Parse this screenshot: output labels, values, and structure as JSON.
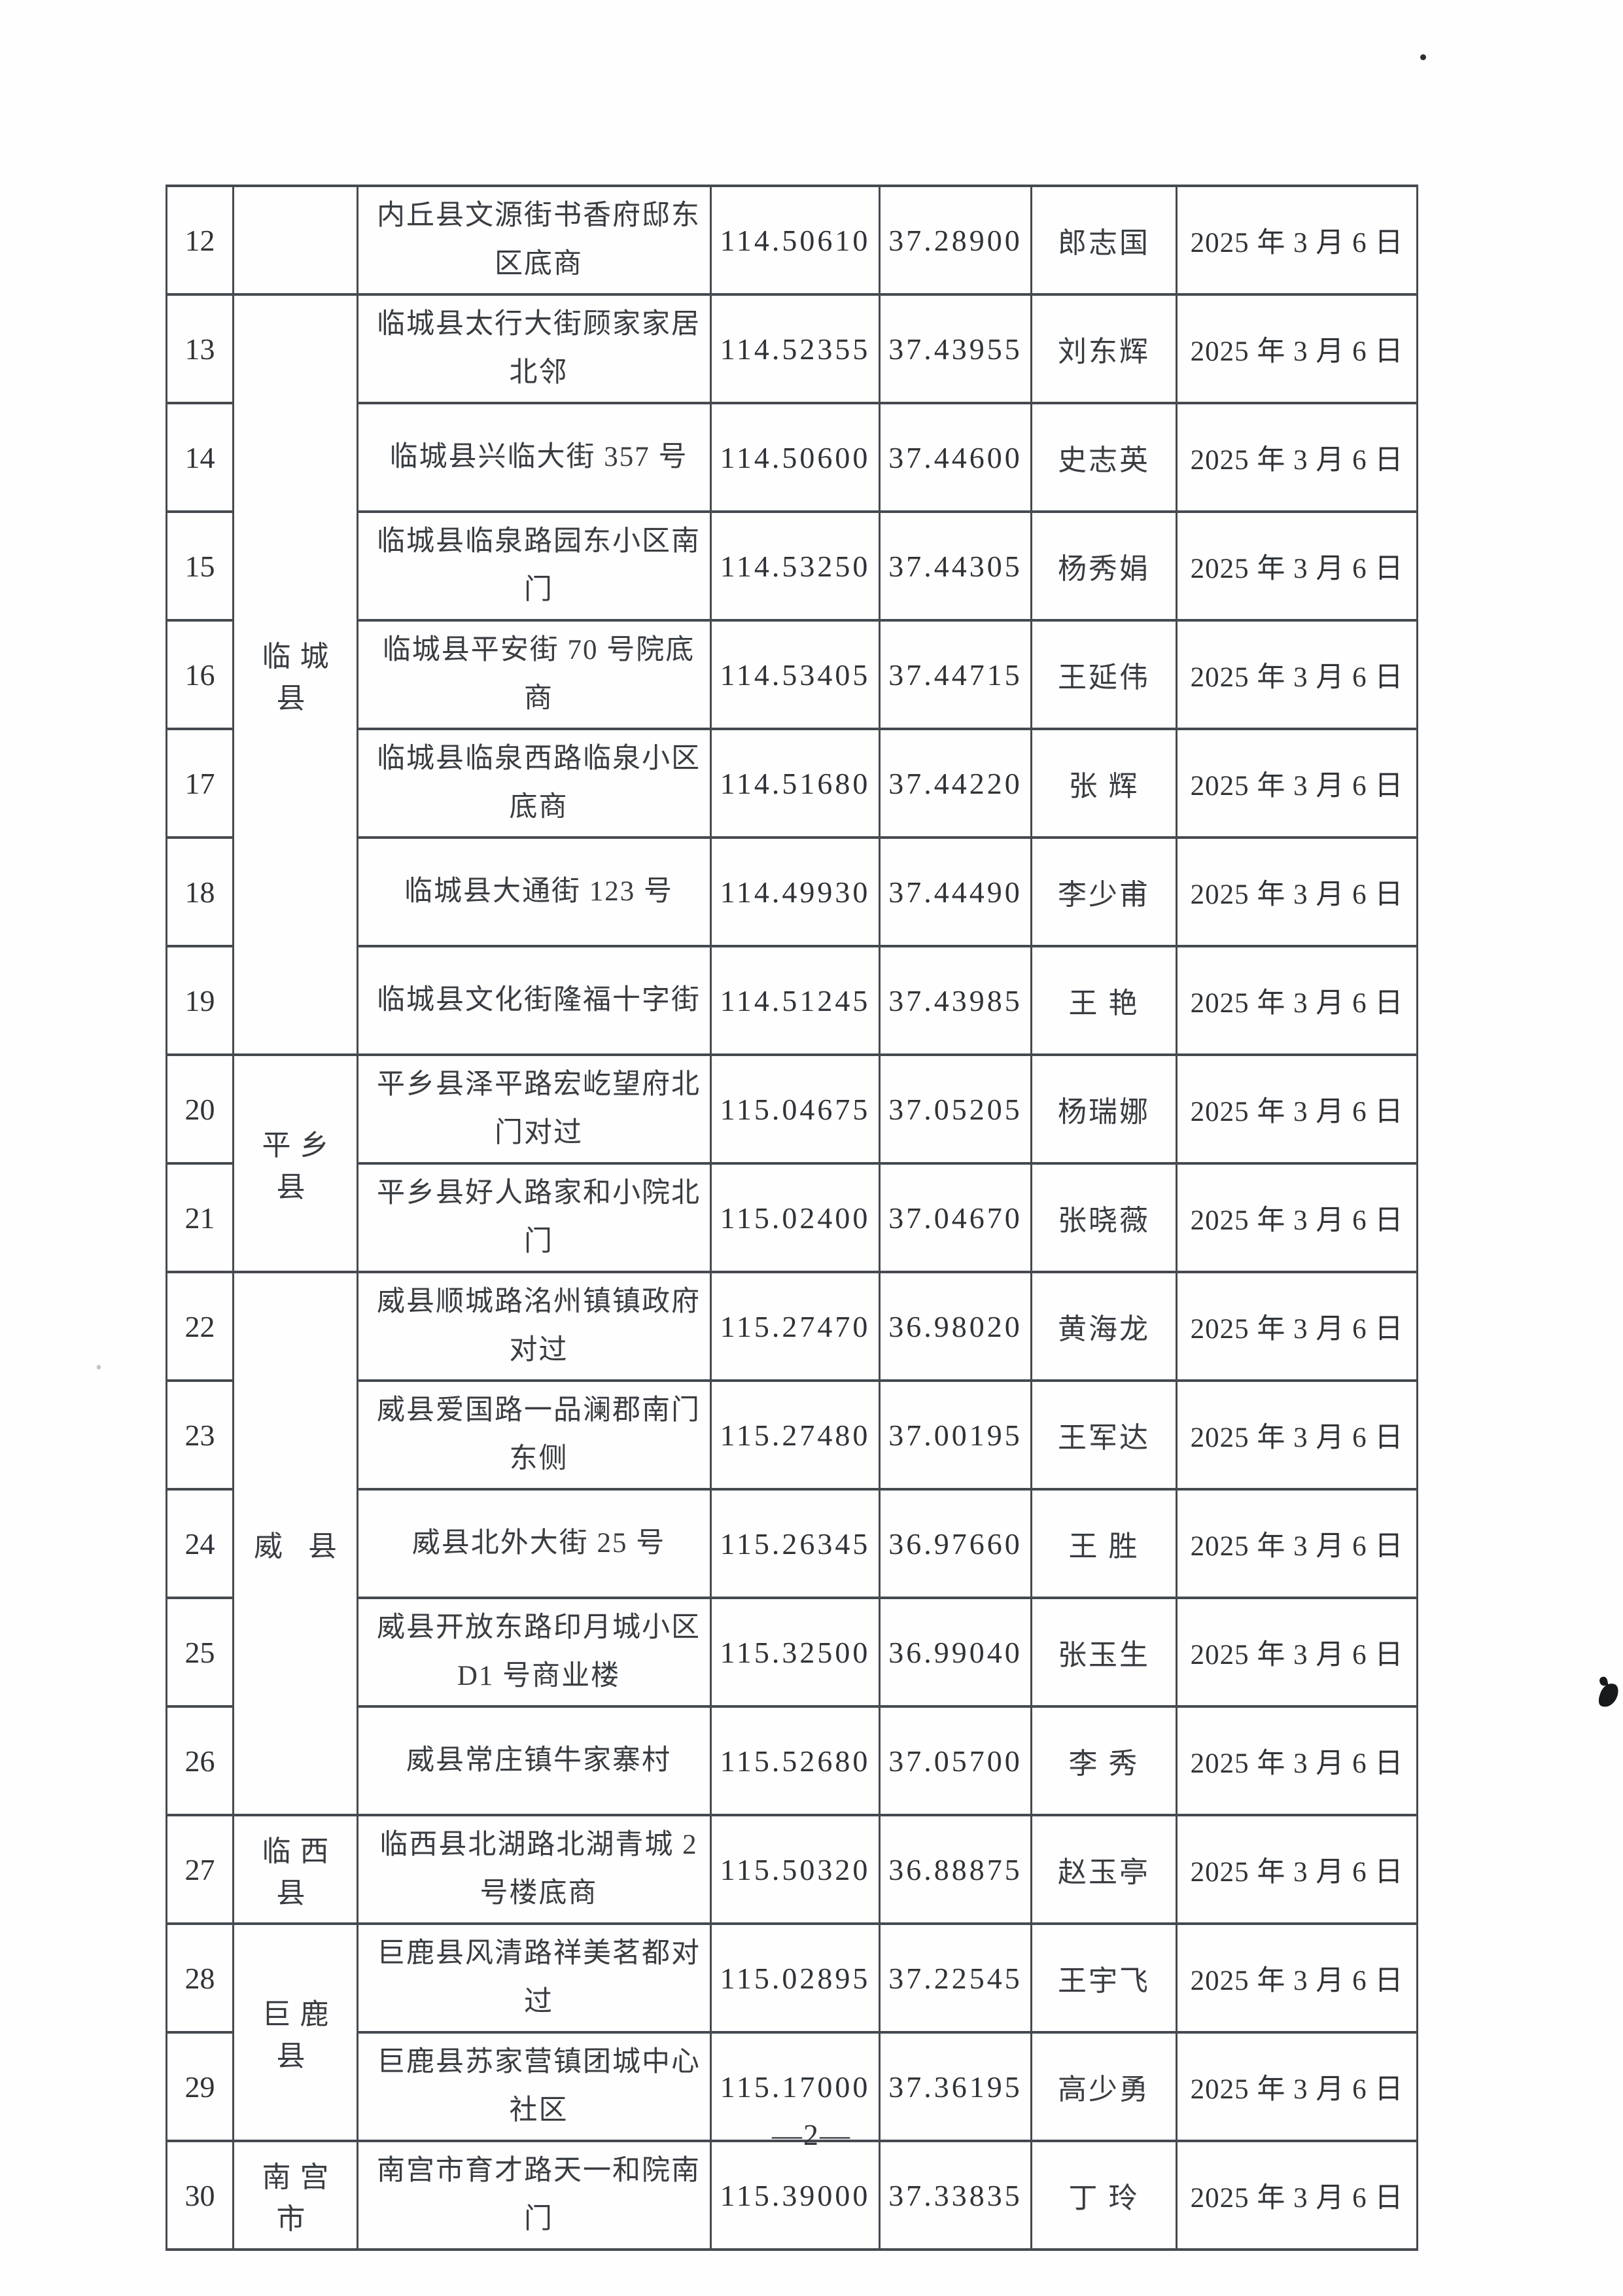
{
  "page": {
    "number_label": "—2—"
  },
  "table": {
    "rows": [
      {
        "seq": "12",
        "county": "",
        "countySpan": 1,
        "address": "内丘县文源街书香府邸东\n区底商",
        "longitude": "114.50610",
        "latitude": "37.28900",
        "name": "郎志国",
        "date": "2025 年 3 月 6 日"
      },
      {
        "seq": "13",
        "county": "临城县",
        "countySpan": 7,
        "address": "临城县太行大街顾家家居\n北邻",
        "longitude": "114.52355",
        "latitude": "37.43955",
        "name": "刘东辉",
        "date": "2025 年 3 月 6 日"
      },
      {
        "seq": "14",
        "county": "",
        "countySpan": 0,
        "address": "临城县兴临大街 357 号",
        "longitude": "114.50600",
        "latitude": "37.44600",
        "name": "史志英",
        "date": "2025 年 3 月 6 日"
      },
      {
        "seq": "15",
        "county": "",
        "countySpan": 0,
        "address": "临城县临泉路园东小区南\n门",
        "longitude": "114.53250",
        "latitude": "37.44305",
        "name": "杨秀娟",
        "date": "2025 年 3 月 6 日"
      },
      {
        "seq": "16",
        "county": "",
        "countySpan": 0,
        "address": "临城县平安街 70 号院底\n商",
        "longitude": "114.53405",
        "latitude": "37.44715",
        "name": "王延伟",
        "date": "2025 年 3 月 6 日"
      },
      {
        "seq": "17",
        "county": "",
        "countySpan": 0,
        "address": "临城县临泉西路临泉小区\n底商",
        "longitude": "114.51680",
        "latitude": "37.44220",
        "name": "张 辉",
        "date": "2025 年 3 月 6 日"
      },
      {
        "seq": "18",
        "county": "",
        "countySpan": 0,
        "address": "临城县大通街 123 号",
        "longitude": "114.49930",
        "latitude": "37.44490",
        "name": "李少甫",
        "date": "2025 年 3 月 6 日"
      },
      {
        "seq": "19",
        "county": "",
        "countySpan": 0,
        "address": "临城县文化街隆福十字街",
        "longitude": "114.51245",
        "latitude": "37.43985",
        "name": "王 艳",
        "date": "2025 年 3 月 6 日"
      },
      {
        "seq": "20",
        "county": "平乡县",
        "countySpan": 2,
        "address": "平乡县泽平路宏屹望府北\n门对过",
        "longitude": "115.04675",
        "latitude": "37.05205",
        "name": "杨瑞娜",
        "date": "2025 年 3 月 6 日"
      },
      {
        "seq": "21",
        "county": "",
        "countySpan": 0,
        "address": "平乡县好人路家和小院北\n门",
        "longitude": "115.02400",
        "latitude": "37.04670",
        "name": "张晓薇",
        "date": "2025 年 3 月 6 日"
      },
      {
        "seq": "22",
        "county": "威 县",
        "countySpan": 5,
        "address": "威县顺城路洺州镇镇政府\n对过",
        "longitude": "115.27470",
        "latitude": "36.98020",
        "name": "黄海龙",
        "date": "2025 年 3 月 6 日"
      },
      {
        "seq": "23",
        "county": "",
        "countySpan": 0,
        "address": "威县爱国路一品澜郡南门\n东侧",
        "longitude": "115.27480",
        "latitude": "37.00195",
        "name": "王军达",
        "date": "2025 年 3 月 6 日"
      },
      {
        "seq": "24",
        "county": "",
        "countySpan": 0,
        "address": "威县北外大街 25 号",
        "longitude": "115.26345",
        "latitude": "36.97660",
        "name": "王 胜",
        "date": "2025 年 3 月 6 日"
      },
      {
        "seq": "25",
        "county": "",
        "countySpan": 0,
        "address": "威县开放东路印月城小区\nD1 号商业楼",
        "longitude": "115.32500",
        "latitude": "36.99040",
        "name": "张玉生",
        "date": "2025 年 3 月 6 日"
      },
      {
        "seq": "26",
        "county": "",
        "countySpan": 0,
        "address": "威县常庄镇牛家寨村",
        "longitude": "115.52680",
        "latitude": "37.05700",
        "name": "李 秀",
        "date": "2025 年 3 月 6 日"
      },
      {
        "seq": "27",
        "county": "临西县",
        "countySpan": 1,
        "address": "临西县北湖路北湖青城 2\n号楼底商",
        "longitude": "115.50320",
        "latitude": "36.88875",
        "name": "赵玉亭",
        "date": "2025 年 3 月 6 日"
      },
      {
        "seq": "28",
        "county": "巨鹿县",
        "countySpan": 2,
        "address": "巨鹿县风清路祥美茗都对\n过",
        "longitude": "115.02895",
        "latitude": "37.22545",
        "name": "王宇飞",
        "date": "2025 年 3 月 6 日"
      },
      {
        "seq": "29",
        "county": "",
        "countySpan": 0,
        "address": "巨鹿县苏家营镇团城中心\n社区",
        "longitude": "115.17000",
        "latitude": "37.36195",
        "name": "高少勇",
        "date": "2025 年 3 月 6 日"
      },
      {
        "seq": "30",
        "county": "南宫市",
        "countySpan": 1,
        "address": "南宫市育才路天一和院南\n门",
        "longitude": "115.39000",
        "latitude": "37.33835",
        "name": "丁 玲",
        "date": "2025 年 3 月 6 日"
      }
    ]
  }
}
